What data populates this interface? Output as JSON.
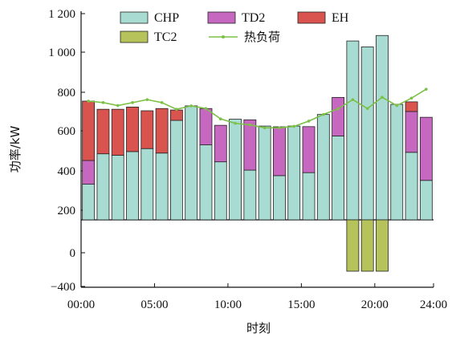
{
  "chart_data": {
    "type": "bar",
    "xlabel": "时刻",
    "ylabel": "功率/kW",
    "x_ticks": [
      "00:00",
      "05:00",
      "10:00",
      "15:00",
      "20:00",
      "24:00"
    ],
    "y_ticks": [
      "1 200",
      "1 000",
      "800",
      "600",
      "400",
      "200",
      "0",
      "−400"
    ],
    "legend": [
      "CHP",
      "TD2",
      "EH",
      "TC2",
      "热负荷"
    ],
    "colors": {
      "CHP": "#a8dbd1",
      "TD2": "#c768c0",
      "EH": "#d9534f",
      "TC2": "#b5c35a",
      "heat_load": "#7cc046"
    },
    "hours": [
      1,
      2,
      3,
      4,
      5,
      6,
      7,
      8,
      9,
      10,
      11,
      12,
      13,
      14,
      15,
      16,
      17,
      18,
      19,
      20,
      21,
      22,
      23,
      24
    ],
    "series": [
      {
        "name": "CHP",
        "values": [
          240,
          445,
          435,
          460,
          480,
          450,
          670,
          768,
          505,
          391,
          678,
          335,
          632,
          298,
          632,
          318,
          710,
          565,
          1205,
          1165,
          1242,
          778,
          455,
          266
        ]
      },
      {
        "name": "TD2",
        "values": [
          160,
          0,
          0,
          0,
          0,
          0,
          0,
          0,
          245,
          246,
          0,
          339,
          0,
          329,
          0,
          310,
          0,
          260,
          0,
          0,
          0,
          0,
          275,
          425
        ]
      },
      {
        "name": "EH",
        "values": [
          400,
          300,
          310,
          300,
          255,
          300,
          70,
          0,
          0,
          0,
          0,
          0,
          0,
          0,
          0,
          0,
          0,
          0,
          0,
          0,
          0,
          0,
          65,
          0
        ]
      },
      {
        "name": "TC2",
        "values": [
          0,
          0,
          0,
          0,
          0,
          0,
          0,
          0,
          0,
          0,
          0,
          0,
          0,
          0,
          0,
          0,
          0,
          0,
          -300,
          -300,
          -300,
          0,
          0,
          0
        ]
      },
      {
        "name": "热负荷",
        "values": [
          800,
          790,
          770,
          790,
          810,
          790,
          745,
          768,
          750,
          680,
          650,
          640,
          620,
          620,
          630,
          665,
          710,
          748,
          810,
          750,
          826,
          770,
          820,
          880
        ]
      }
    ]
  }
}
